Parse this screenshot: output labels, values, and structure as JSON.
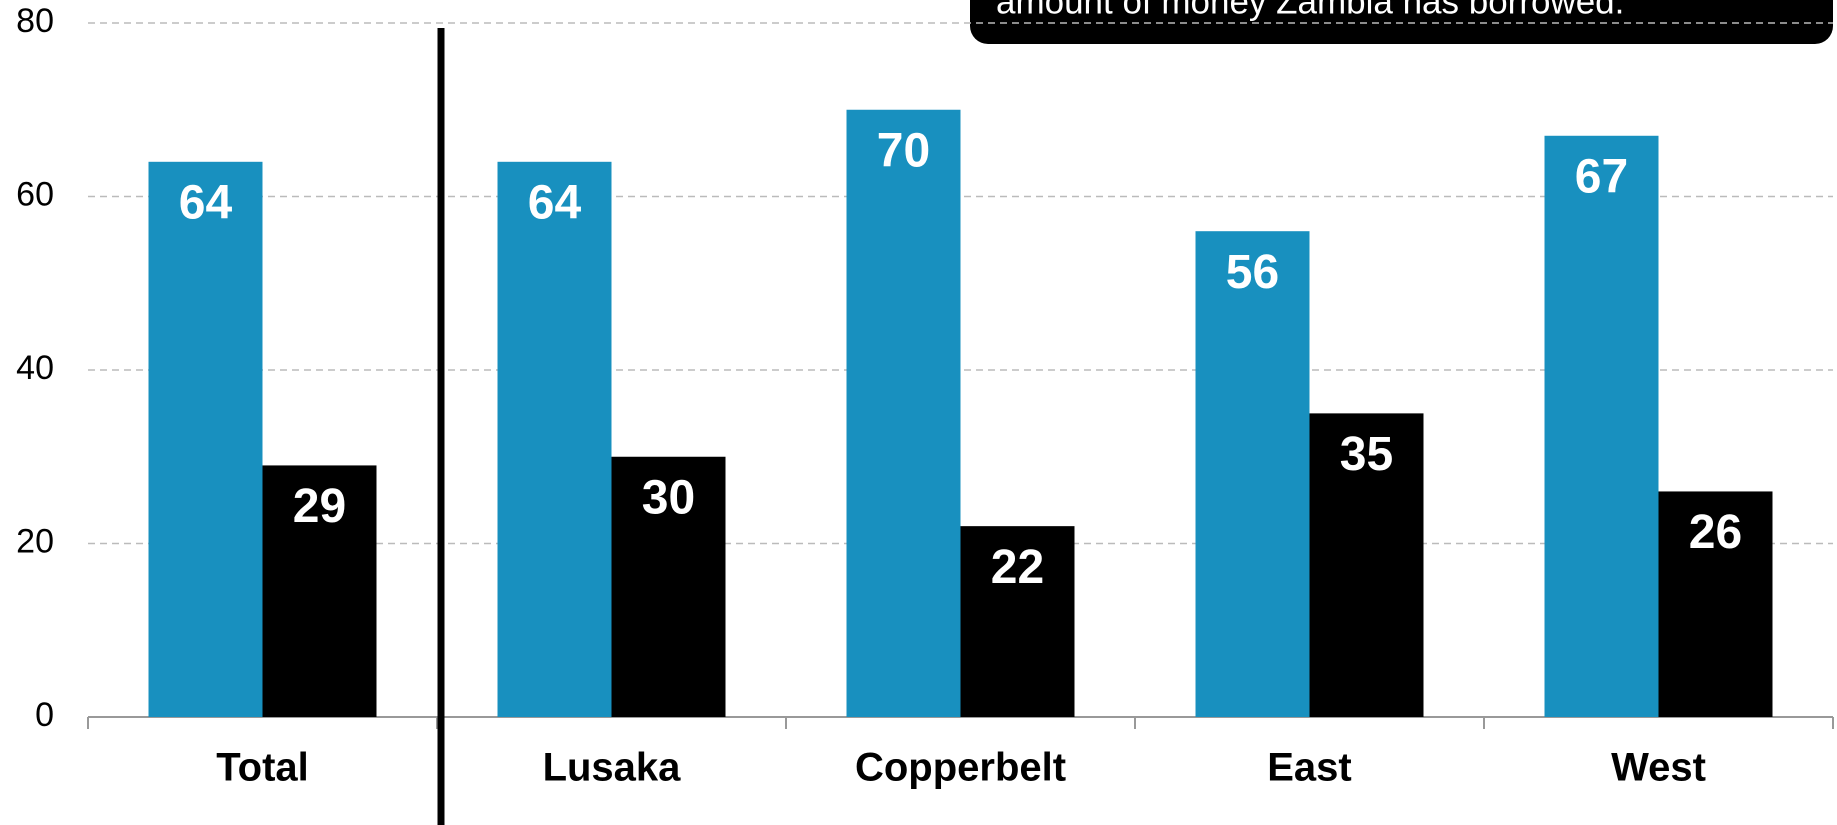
{
  "chart_data": {
    "type": "bar",
    "annotation": "amount of money Zambia has borrowed.",
    "categories": [
      "Total",
      "Lusaka",
      "Copperbelt",
      "East",
      "West"
    ],
    "series": [
      {
        "color": "#1890bf",
        "values": [
          64,
          64,
          70,
          56,
          67
        ]
      },
      {
        "color": "#000000",
        "values": [
          29,
          30,
          22,
          35,
          26
        ]
      }
    ],
    "ylim": [
      0,
      80
    ],
    "yticks": [
      0,
      20,
      40,
      60,
      80
    ],
    "grid": true
  }
}
